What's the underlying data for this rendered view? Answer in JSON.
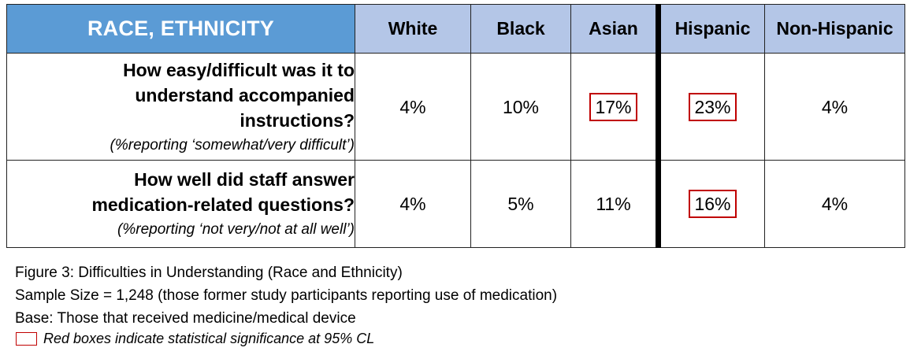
{
  "table": {
    "corner_label": "RACE, ETHNICITY",
    "columns": [
      "White",
      "Black",
      "Asian",
      "Hispanic",
      "Non-Hispanic"
    ],
    "rows": [
      {
        "question_lines": [
          "How easy/difficult was it to",
          "understand accompanied",
          "instructions?"
        ],
        "note": "(%reporting ‘somewhat/very difficult’)",
        "values": [
          "4%",
          "10%",
          "17%",
          "23%",
          "4%"
        ],
        "significant": [
          false,
          false,
          true,
          true,
          false
        ]
      },
      {
        "question_lines": [
          "How well did staff answer",
          "medication-related questions?"
        ],
        "note": "(%reporting ‘not very/not at all well’)",
        "values": [
          "4%",
          "5%",
          "11%",
          "16%",
          "4%"
        ],
        "significant": [
          false,
          false,
          false,
          true,
          false
        ]
      }
    ]
  },
  "caption": {
    "figure": "Figure 3: Difficulties in Understanding (Race and Ethnicity)",
    "sample_size": "Sample Size = 1,248 (those former study participants reporting use of medication)",
    "base": "Base: Those that received medicine/medical device",
    "legend": "Red boxes indicate statistical significance at 95% CL"
  },
  "colors": {
    "header_dark": "#5b9bd5",
    "header_light": "#b4c6e7",
    "significance_box": "#c00000"
  }
}
